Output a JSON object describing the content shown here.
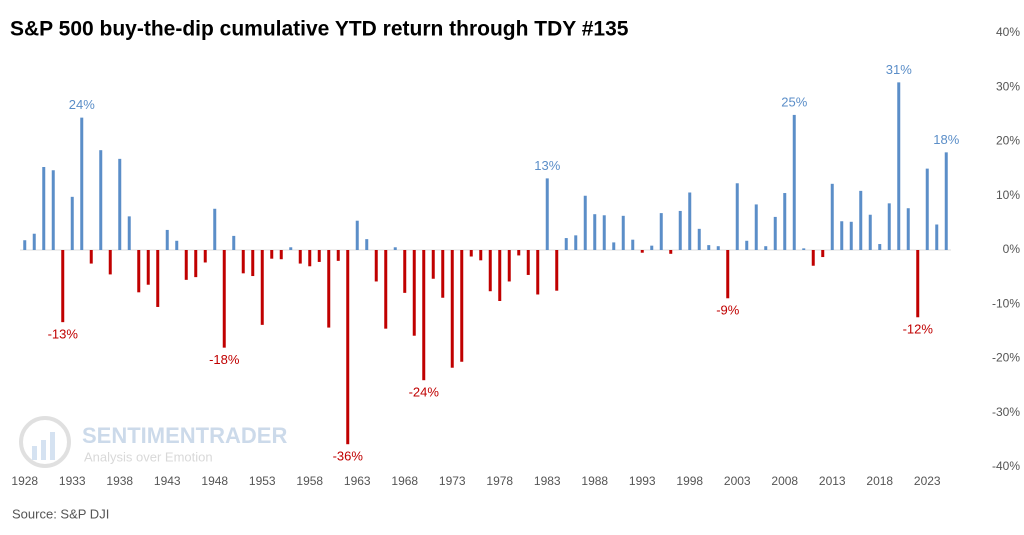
{
  "chart_data": {
    "type": "bar",
    "title": "S&P 500 buy-the-dip cumulative YTD return through TDY #135",
    "source": "Source: S&P DJI",
    "watermark": "SENTIMENTRADER",
    "watermark_tagline": "Analysis over Emotion",
    "x": [
      1928,
      1929,
      1930,
      1931,
      1932,
      1933,
      1934,
      1935,
      1936,
      1937,
      1938,
      1939,
      1940,
      1941,
      1942,
      1943,
      1944,
      1945,
      1946,
      1947,
      1948,
      1949,
      1950,
      1951,
      1952,
      1953,
      1954,
      1955,
      1956,
      1957,
      1958,
      1959,
      1960,
      1961,
      1962,
      1963,
      1964,
      1965,
      1966,
      1967,
      1968,
      1969,
      1970,
      1971,
      1972,
      1973,
      1974,
      1975,
      1976,
      1977,
      1978,
      1979,
      1980,
      1981,
      1982,
      1983,
      1984,
      1985,
      1986,
      1987,
      1988,
      1989,
      1990,
      1991,
      1992,
      1993,
      1994,
      1995,
      1996,
      1997,
      1998,
      1999,
      2000,
      2001,
      2002,
      2003,
      2004,
      2005,
      2006,
      2007,
      2008,
      2009,
      2010,
      2011,
      2012,
      2013,
      2014,
      2015,
      2016,
      2017,
      2018,
      2019,
      2020,
      2021,
      2022,
      2023,
      2024,
      2025
    ],
    "values": [
      1.8,
      3,
      15.3,
      14.7,
      -13.3,
      9.8,
      24.4,
      -2.5,
      18.4,
      -4.5,
      16.8,
      6.2,
      -7.8,
      -6.4,
      -10.5,
      3.7,
      1.7,
      -5.5,
      -5,
      -2.3,
      7.6,
      -18,
      2.6,
      -4.3,
      -4.8,
      -13.8,
      -1.6,
      -1.7,
      0.5,
      -2.5,
      -3,
      -2.2,
      -14.3,
      -2,
      -35.8,
      5.4,
      2,
      -5.8,
      -14.5,
      0.5,
      -7.9,
      -15.8,
      -24,
      -5.3,
      -8.8,
      -21.7,
      -20.6,
      -1.2,
      -1.9,
      -7.6,
      -9.4,
      -5.8,
      -1,
      -4.6,
      -8.2,
      13.2,
      -7.5,
      2.2,
      2.7,
      10,
      6.6,
      6.4,
      1.4,
      6.3,
      1.9,
      -0.5,
      0.8,
      6.8,
      -0.7,
      7.2,
      10.6,
      3.9,
      0.9,
      0.7,
      -8.9,
      12.3,
      1.7,
      8.4,
      0.7,
      6.1,
      10.5,
      24.9,
      0.3,
      -2.9,
      -1.3,
      12.2,
      5.3,
      5.2,
      10.9,
      6.5,
      1.1,
      8.6,
      30.9,
      7.7,
      -12.4,
      15,
      4.7,
      18
    ],
    "value_labels": [
      null,
      null,
      null,
      null,
      "-13%",
      null,
      "24%",
      null,
      null,
      null,
      null,
      null,
      null,
      null,
      null,
      null,
      null,
      null,
      null,
      null,
      null,
      "-18%",
      null,
      null,
      null,
      null,
      null,
      null,
      null,
      null,
      null,
      null,
      null,
      null,
      "-36%",
      null,
      null,
      null,
      null,
      null,
      null,
      null,
      "-24%",
      null,
      null,
      null,
      null,
      null,
      null,
      null,
      null,
      null,
      null,
      null,
      null,
      "13%",
      null,
      null,
      null,
      null,
      null,
      null,
      null,
      null,
      null,
      null,
      null,
      null,
      null,
      null,
      null,
      null,
      null,
      null,
      "-9%",
      null,
      null,
      null,
      null,
      null,
      null,
      "25%",
      null,
      null,
      null,
      null,
      null,
      null,
      null,
      null,
      null,
      null,
      "31%",
      null,
      "-12%",
      null,
      null,
      "18%"
    ],
    "positive_color": "#5b8ec8",
    "negative_color": "#c00000",
    "xlim": [
      1927.5,
      2025.5
    ],
    "xticks": [
      1928,
      1933,
      1938,
      1943,
      1948,
      1953,
      1958,
      1963,
      1968,
      1973,
      1978,
      1983,
      1988,
      1993,
      1998,
      2003,
      2008,
      2013,
      2018,
      2023
    ],
    "ylim": [
      -40,
      40
    ],
    "yticks": [
      {
        "value": -40,
        "label": "-40%"
      },
      {
        "value": -30,
        "label": "-30%"
      },
      {
        "value": -20,
        "label": "-20%"
      },
      {
        "value": -10,
        "label": "-10%"
      },
      {
        "value": 0,
        "label": "0%"
      },
      {
        "value": 10,
        "label": "10%"
      },
      {
        "value": 20,
        "label": "20%"
      },
      {
        "value": 30,
        "label": "30%"
      },
      {
        "value": 40,
        "label": "40%"
      }
    ],
    "y_axis_side": "right"
  }
}
